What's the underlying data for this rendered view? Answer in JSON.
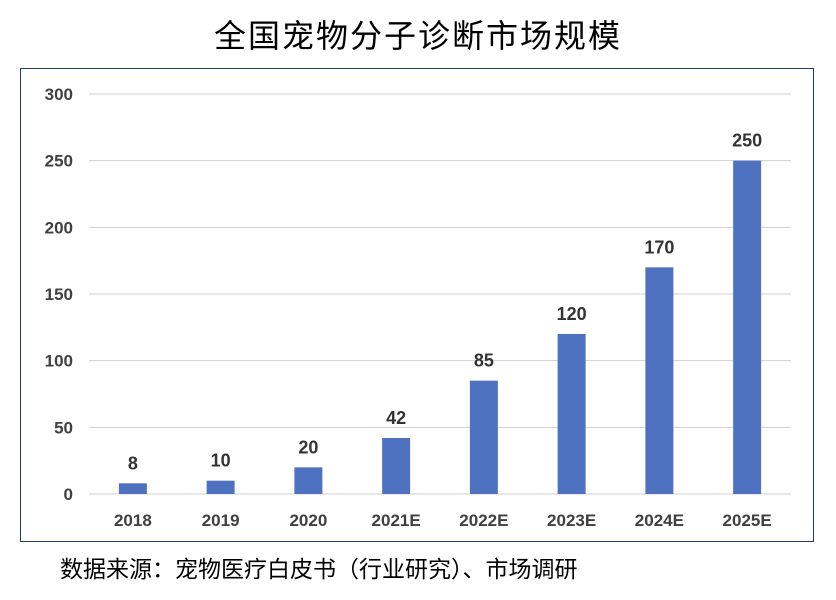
{
  "chart_data": {
    "type": "bar",
    "title": "全国宠物分子诊断市场规模",
    "categories": [
      "2018",
      "2019",
      "2020",
      "2021E",
      "2022E",
      "2023E",
      "2024E",
      "2025E"
    ],
    "values": [
      8,
      10,
      20,
      42,
      85,
      120,
      170,
      250
    ],
    "data_labels": [
      "8",
      "10",
      "20",
      "42",
      "85",
      "120",
      "170",
      "250"
    ],
    "ylim": [
      0,
      300
    ],
    "y_ticks": [
      "0",
      "50",
      "100",
      "150",
      "200",
      "250",
      "300"
    ],
    "grid": true,
    "legend": "none",
    "bar_color": "#4f72c0",
    "grid_color": "#d0d0d0",
    "source": "数据来源：宠物医疗白皮书（行业研究）、市场调研"
  }
}
